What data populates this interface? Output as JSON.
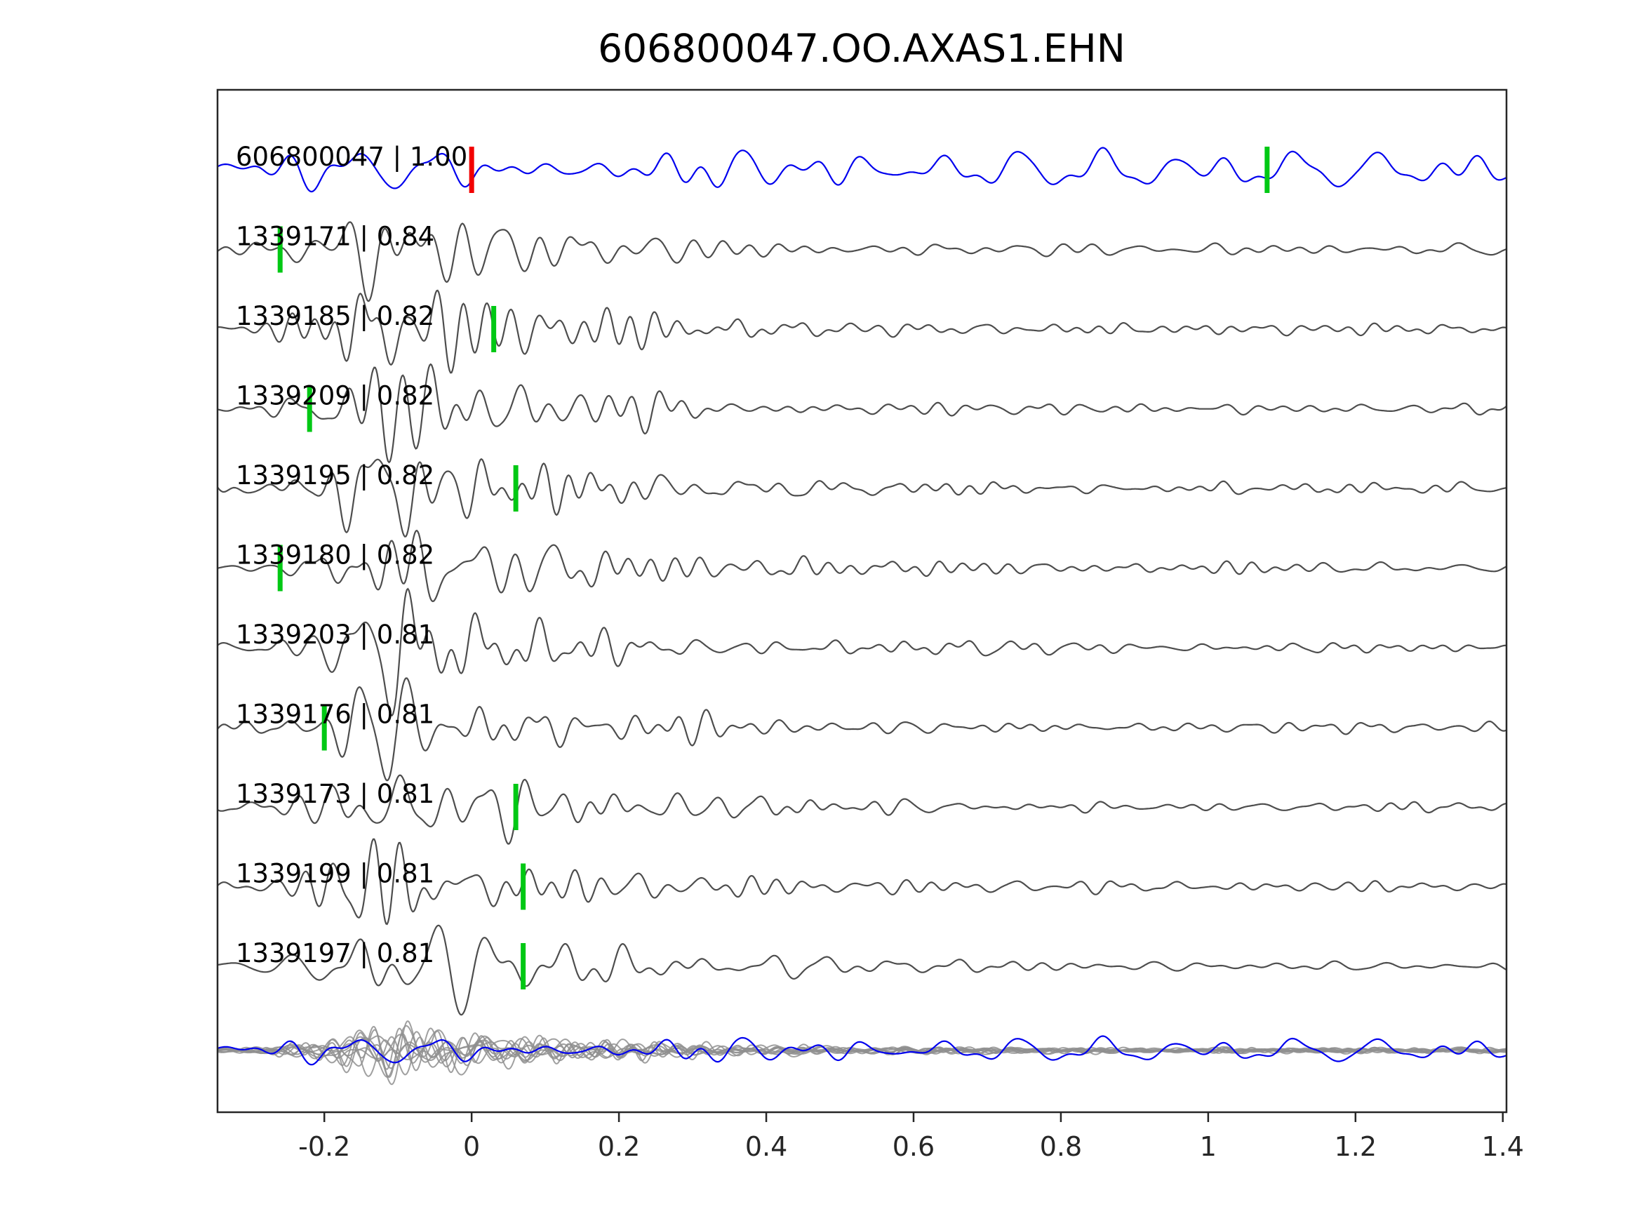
{
  "chart_data": {
    "type": "line",
    "title": "606800047.OO.AXAS1.EHN",
    "xlabel": "",
    "ylabel": "",
    "xlim": [
      -0.345,
      1.405
    ],
    "xticks": [
      -0.2,
      0,
      0.2,
      0.4,
      0.6,
      0.8,
      1,
      1.2,
      1.4
    ],
    "xtick_labels": [
      "-0.2",
      "0",
      "0.2",
      "0.4",
      "0.6",
      "0.8",
      "1",
      "1.2",
      "1.4"
    ],
    "grid": false,
    "legend": false,
    "colors": {
      "template_trace": "#0000ee",
      "detection_trace": "#4d4d4d",
      "overlay_gray": "#8f8f8f",
      "pick_green": "#00c814",
      "pick_red": "#f20000",
      "axis": "#262626",
      "label_text": "#000000"
    },
    "traces": [
      {
        "label": "606800047 | 1.00",
        "id": "606800047",
        "correlation": 1.0,
        "kind": "template",
        "picks": [
          {
            "x": 0.0,
            "color": "#f20000",
            "name": "template-pick-red"
          },
          {
            "x": 1.08,
            "color": "#00c814",
            "name": "template-pick-green"
          }
        ],
        "seed": 4021
      },
      {
        "label": "1339171 | 0.84",
        "id": "1339171",
        "correlation": 0.84,
        "kind": "detection",
        "picks": [
          {
            "x": -0.26,
            "color": "#00c814",
            "name": "detection-pick-green"
          }
        ],
        "seed": 101
      },
      {
        "label": "1339185 | 0.82",
        "id": "1339185",
        "correlation": 0.82,
        "kind": "detection",
        "picks": [
          {
            "x": 0.03,
            "color": "#00c814",
            "name": "detection-pick-green"
          }
        ],
        "seed": 102
      },
      {
        "label": "1339209 | 0.82",
        "id": "1339209",
        "correlation": 0.82,
        "kind": "detection",
        "picks": [
          {
            "x": -0.22,
            "color": "#00c814",
            "name": "detection-pick-green"
          }
        ],
        "seed": 103
      },
      {
        "label": "1339195 | 0.82",
        "id": "1339195",
        "correlation": 0.82,
        "kind": "detection",
        "picks": [
          {
            "x": 0.06,
            "color": "#00c814",
            "name": "detection-pick-green"
          }
        ],
        "seed": 104
      },
      {
        "label": "1339180 | 0.82",
        "id": "1339180",
        "correlation": 0.82,
        "kind": "detection",
        "picks": [
          {
            "x": -0.26,
            "color": "#00c814",
            "name": "detection-pick-green"
          }
        ],
        "seed": 105
      },
      {
        "label": "1339203 | 0.81",
        "id": "1339203",
        "correlation": 0.81,
        "kind": "detection",
        "picks": [],
        "seed": 106
      },
      {
        "label": "1339176 | 0.81",
        "id": "1339176",
        "correlation": 0.81,
        "kind": "detection",
        "picks": [
          {
            "x": -0.2,
            "color": "#00c814",
            "name": "detection-pick-green"
          }
        ],
        "seed": 107
      },
      {
        "label": "1339173 | 0.81",
        "id": "1339173",
        "correlation": 0.81,
        "kind": "detection",
        "picks": [
          {
            "x": 0.06,
            "color": "#00c814",
            "name": "detection-pick-green"
          }
        ],
        "seed": 108
      },
      {
        "label": "1339199 | 0.81",
        "id": "1339199",
        "correlation": 0.81,
        "kind": "detection",
        "picks": [
          {
            "x": 0.07,
            "color": "#00c814",
            "name": "detection-pick-green"
          }
        ],
        "seed": 109
      },
      {
        "label": "1339197 | 0.81",
        "id": "1339197",
        "correlation": 0.81,
        "kind": "detection",
        "picks": [
          {
            "x": 0.07,
            "color": "#00c814",
            "name": "detection-pick-green"
          }
        ],
        "seed": 110
      }
    ],
    "overlay_row": {
      "description": "all detection waveforms overlaid in gray with blue template waveform on top",
      "members": [
        "1339171",
        "1339185",
        "1339209",
        "1339195",
        "1339180",
        "1339203",
        "1339176",
        "1339173",
        "1339199",
        "1339197",
        "606800047"
      ]
    }
  }
}
